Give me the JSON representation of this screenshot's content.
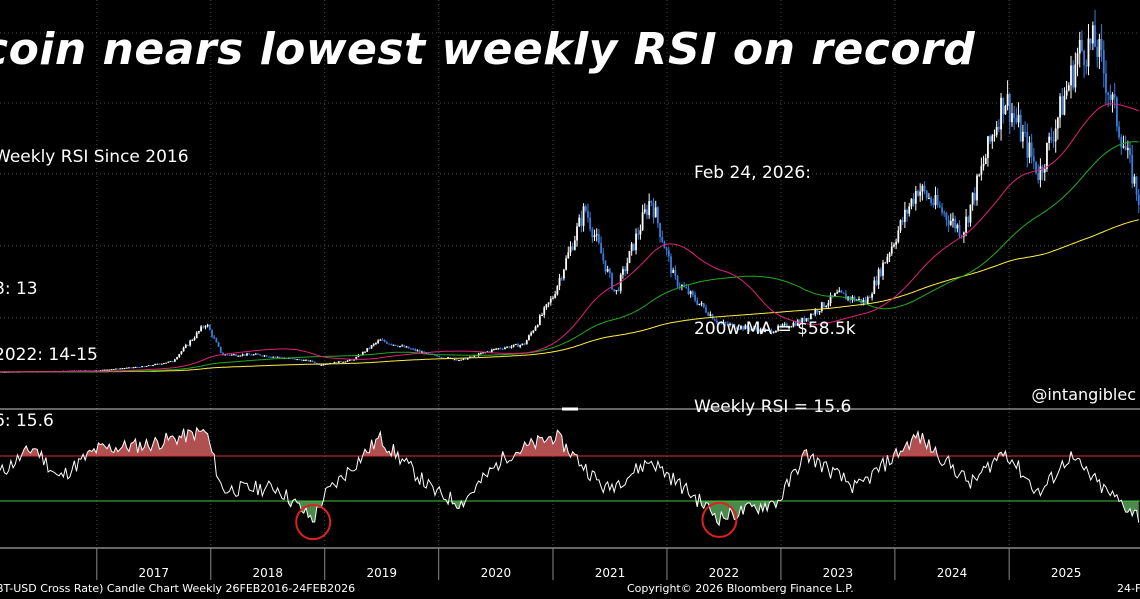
{
  "title": "coin nears lowest weekly RSI on record",
  "notes_left": [
    "Weekly RSI Since 2016",
    "",
    "8: 13",
    "2022: 14-15",
    "6: 15.6"
  ],
  "notes_right": [
    "Feb 24, 2026:",
    "",
    "200w MA = $58.5k",
    "Weekly RSI = 15.6"
  ],
  "handle": "@intangiblec",
  "footer": {
    "left": "BT-USD Cross Rate) Candle Chart Weekly 26FEB2016-24FEB2026",
    "center": "Copyright© 2026 Bloomberg Finance L.P.",
    "right": "24-F"
  },
  "colors": {
    "background": "#000000",
    "candle_up": "#ffffff",
    "candle_down": "#3b7ddd",
    "ma_50": "#e0207a",
    "ma_100": "#22aa22",
    "ma_200": "#ffee44",
    "rsi_line": "#ffffff",
    "overbought_line": "#e03030",
    "oversold_line": "#40c040",
    "overbought_fill": "#b05050",
    "oversold_fill": "#4a8a4a",
    "low_circle": "#e02020"
  },
  "chart_data": [
    {
      "type": "line",
      "series_kind": "candlestick price",
      "years": [
        "2017",
        "2018",
        "2019",
        "2020",
        "2021",
        "2022",
        "2023",
        "2024",
        "2025"
      ],
      "x_start": "2016-02-26",
      "x_end": "2026-02-24",
      "price_points": [
        [
          "2016-02-26",
          430
        ],
        [
          "2016-07-01",
          650
        ],
        [
          "2017-01-01",
          1000
        ],
        [
          "2017-06-01",
          2500
        ],
        [
          "2017-09-01",
          4500
        ],
        [
          "2017-12-17",
          19000
        ],
        [
          "2018-02-06",
          7000
        ],
        [
          "2018-06-01",
          7000
        ],
        [
          "2018-11-20",
          4500
        ],
        [
          "2018-12-15",
          3200
        ],
        [
          "2019-04-01",
          5000
        ],
        [
          "2019-06-26",
          12500
        ],
        [
          "2019-12-18",
          6600
        ],
        [
          "2020-03-13",
          4900
        ],
        [
          "2020-07-01",
          9200
        ],
        [
          "2020-10-01",
          11000
        ],
        [
          "2020-12-31",
          29000
        ],
        [
          "2021-04-14",
          63000
        ],
        [
          "2021-07-20",
          30000
        ],
        [
          "2021-11-10",
          67000
        ],
        [
          "2022-01-24",
          36000
        ],
        [
          "2022-06-18",
          19000
        ],
        [
          "2022-11-21",
          15800
        ],
        [
          "2023-03-10",
          20000
        ],
        [
          "2023-07-01",
          30000
        ],
        [
          "2023-10-01",
          27000
        ],
        [
          "2024-03-14",
          71000
        ],
        [
          "2024-08-05",
          54000
        ],
        [
          "2024-12-17",
          106000
        ],
        [
          "2025-04-07",
          76000
        ],
        [
          "2025-08-14",
          123000
        ],
        [
          "2025-10-06",
          126000
        ],
        [
          "2026-02-24",
          65000
        ]
      ],
      "moving_average_200w": 58500
    },
    {
      "type": "line",
      "series_kind": "weekly RSI",
      "overbought_level": 70,
      "oversold_level": 30,
      "latest_rsi": 15.6,
      "rsi_points": [
        [
          "2016-02-26",
          55
        ],
        [
          "2016-06-15",
          78
        ],
        [
          "2016-09-01",
          50
        ],
        [
          "2017-01-01",
          76
        ],
        [
          "2017-06-10",
          80
        ],
        [
          "2017-12-17",
          92
        ],
        [
          "2018-02-06",
          40
        ],
        [
          "2018-08-01",
          42
        ],
        [
          "2018-11-25",
          13
        ],
        [
          "2019-01-01",
          35
        ],
        [
          "2019-06-26",
          86
        ],
        [
          "2019-12-18",
          38
        ],
        [
          "2020-03-13",
          28
        ],
        [
          "2020-08-01",
          70
        ],
        [
          "2021-01-08",
          88
        ],
        [
          "2021-06-20",
          40
        ],
        [
          "2021-11-10",
          66
        ],
        [
          "2022-06-18",
          15
        ],
        [
          "2022-12-25",
          30
        ],
        [
          "2023-03-20",
          72
        ],
        [
          "2023-09-01",
          41
        ],
        [
          "2024-03-14",
          88
        ],
        [
          "2024-09-01",
          45
        ],
        [
          "2024-12-17",
          75
        ],
        [
          "2025-04-07",
          36
        ],
        [
          "2025-07-14",
          70
        ],
        [
          "2025-11-01",
          40
        ],
        [
          "2026-02-24",
          15.6
        ]
      ]
    }
  ]
}
